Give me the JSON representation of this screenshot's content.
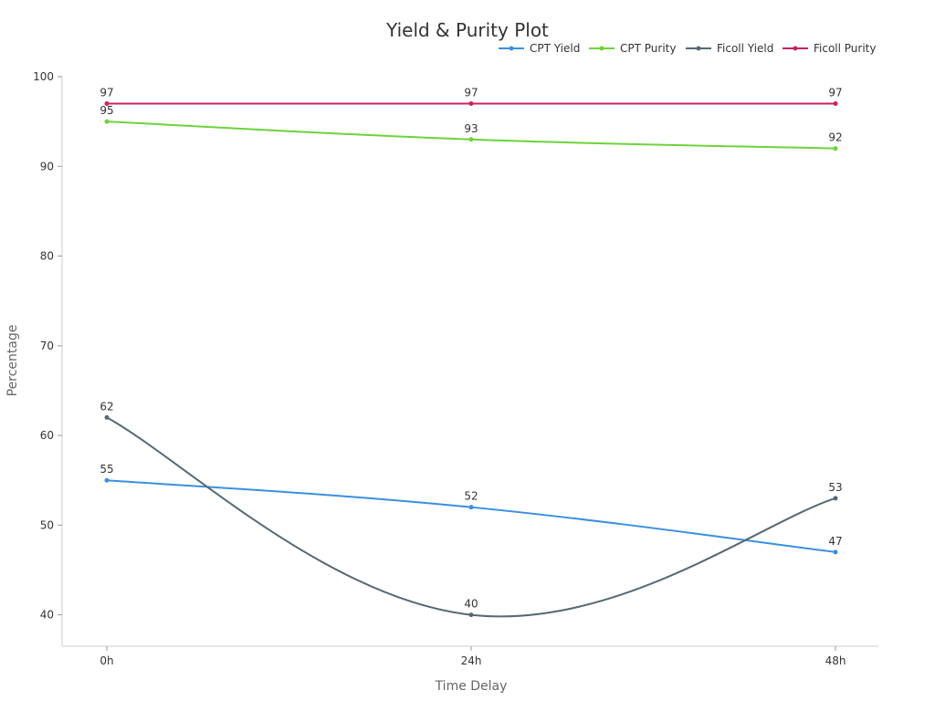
{
  "chart_data": {
    "type": "line",
    "title": "Yield & Purity Plot",
    "xlabel": "Time Delay",
    "ylabel": "Percentage",
    "categories": [
      "0h",
      "24h",
      "48h"
    ],
    "ylim": [
      36.5,
      100
    ],
    "yticks": [
      40,
      50,
      60,
      70,
      80,
      90,
      100
    ],
    "grid": false,
    "legend_position": "top-right",
    "data_labels": true,
    "smooth": true,
    "series": [
      {
        "name": "CPT Yield",
        "values": [
          55,
          52,
          47
        ],
        "color": "#3a8fe0"
      },
      {
        "name": "CPT Purity",
        "values": [
          95,
          93,
          92
        ],
        "color": "#6dd33a"
      },
      {
        "name": "Ficoll Yield",
        "values": [
          62,
          40,
          53
        ],
        "color": "#546a73"
      },
      {
        "name": "Ficoll Purity",
        "values": [
          97,
          97,
          97
        ],
        "color": "#c8235e"
      }
    ]
  }
}
